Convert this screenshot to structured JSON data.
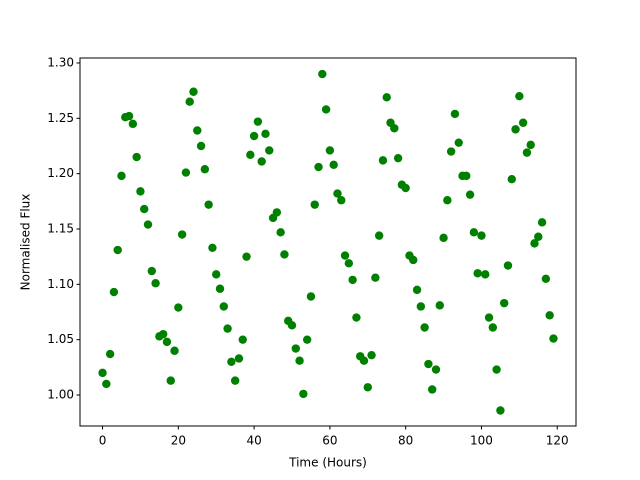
{
  "chart_data": {
    "type": "scatter",
    "x_label": "Time (Hours)",
    "y_label": "Normalised Flux",
    "color": "#008000",
    "x": [
      0,
      1,
      2,
      3,
      4,
      5,
      6,
      7,
      8,
      9,
      10,
      11,
      12,
      13,
      14,
      15,
      16,
      17,
      18,
      19,
      20,
      21,
      22,
      23,
      24,
      25,
      26,
      27,
      28,
      29,
      30,
      31,
      32,
      33,
      34,
      35,
      36,
      37,
      38,
      39,
      40,
      41,
      42,
      43,
      44,
      45,
      46,
      47,
      48,
      49,
      50,
      51,
      52,
      53,
      54,
      55,
      56,
      57,
      58,
      59,
      60,
      61,
      62,
      63,
      64,
      65,
      66,
      67,
      68,
      69,
      70,
      71,
      72,
      73,
      74,
      75,
      76,
      77,
      78,
      79,
      80,
      81,
      82,
      83,
      84,
      85,
      86,
      87,
      88,
      89,
      90,
      91,
      92,
      93,
      94,
      95,
      96,
      97,
      98,
      99,
      100,
      101,
      102,
      103,
      104,
      105,
      106,
      107,
      108,
      109,
      110,
      111,
      112,
      113,
      114,
      115,
      116,
      117,
      118,
      119
    ],
    "values": [
      1.02,
      1.01,
      1.037,
      1.093,
      1.131,
      1.198,
      1.251,
      1.252,
      1.245,
      1.215,
      1.184,
      1.168,
      1.154,
      1.112,
      1.101,
      1.053,
      1.055,
      1.048,
      1.013,
      1.04,
      1.079,
      1.145,
      1.201,
      1.265,
      1.274,
      1.239,
      1.225,
      1.204,
      1.172,
      1.133,
      1.109,
      1.096,
      1.08,
      1.06,
      1.03,
      1.013,
      1.033,
      1.05,
      1.125,
      1.217,
      1.234,
      1.247,
      1.211,
      1.236,
      1.221,
      1.16,
      1.165,
      1.147,
      1.127,
      1.067,
      1.063,
      1.042,
      1.031,
      1.001,
      1.05,
      1.089,
      1.172,
      1.206,
      1.29,
      1.258,
      1.221,
      1.208,
      1.182,
      1.176,
      1.126,
      1.119,
      1.104,
      1.07,
      1.035,
      1.031,
      1.007,
      1.036,
      1.106,
      1.144,
      1.212,
      1.269,
      1.246,
      1.241,
      1.214,
      1.19,
      1.187,
      1.126,
      1.122,
      1.095,
      1.08,
      1.061,
      1.028,
      1.005,
      1.023,
      1.081,
      1.142,
      1.176,
      1.22,
      1.254,
      1.228,
      1.198,
      1.198,
      1.181,
      1.147,
      1.11,
      1.144,
      1.109,
      1.07,
      1.061,
      1.023,
      0.986,
      1.083,
      1.117,
      1.195,
      1.24,
      1.27,
      1.246,
      1.219,
      1.226,
      1.137,
      1.143,
      1.156,
      1.105,
      1.072,
      1.051
    ],
    "xlim": [
      -5.95,
      124.95
    ],
    "ylim": [
      0.972,
      1.3045
    ],
    "xticks": [
      0,
      20,
      40,
      60,
      80,
      100,
      120
    ],
    "yticks": [
      {
        "value": 1.0,
        "label": "1.00"
      },
      {
        "value": 1.05,
        "label": "1.05"
      },
      {
        "value": 1.1,
        "label": "1.10"
      },
      {
        "value": 1.15,
        "label": "1.15"
      },
      {
        "value": 1.2,
        "label": "1.20"
      },
      {
        "value": 1.25,
        "label": "1.25"
      },
      {
        "value": 1.3,
        "label": "1.30"
      }
    ]
  }
}
